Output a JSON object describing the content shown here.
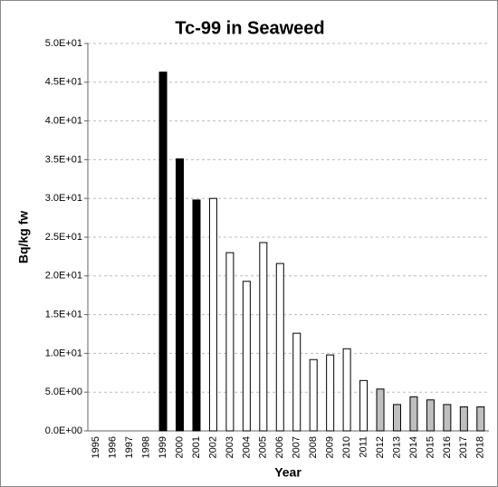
{
  "chart_data": {
    "type": "bar",
    "title": "Tc-99 in Seaweed",
    "x_label": "Year",
    "y_label": "Bq/kg fw",
    "categories": [
      "1995",
      "1996",
      "1997",
      "1998",
      "1999",
      "2000",
      "2001",
      "2002",
      "2003",
      "2004",
      "2005",
      "2006",
      "2007",
      "2008",
      "2009",
      "2010",
      "2011",
      "2012",
      "2013",
      "2014",
      "2015",
      "2016",
      "2017",
      "2018"
    ],
    "values": [
      null,
      null,
      null,
      null,
      46.3,
      35.1,
      29.8,
      30.0,
      23.0,
      19.3,
      24.3,
      21.6,
      12.6,
      9.2,
      9.8,
      10.6,
      6.5,
      5.4,
      3.4,
      4.4,
      4.0,
      3.4,
      3.1,
      3.1
    ],
    "colors": [
      "#000000",
      "#000000",
      "#000000",
      "#000000",
      "#000000",
      "#000000",
      "#000000",
      "#ffffff",
      "#ffffff",
      "#ffffff",
      "#ffffff",
      "#ffffff",
      "#ffffff",
      "#ffffff",
      "#ffffff",
      "#ffffff",
      "#ffffff",
      "#bfbfbf",
      "#bfbfbf",
      "#bfbfbf",
      "#bfbfbf",
      "#bfbfbf",
      "#bfbfbf",
      "#bfbfbf"
    ],
    "ylim": [
      0,
      50
    ],
    "yticks": [
      {
        "value": 0,
        "label": "0.0E+00"
      },
      {
        "value": 5,
        "label": "5.0E+00"
      },
      {
        "value": 10,
        "label": "1.0E+01"
      },
      {
        "value": 15,
        "label": "1.5E+01"
      },
      {
        "value": 20,
        "label": "2.0E+01"
      },
      {
        "value": 25,
        "label": "2.5E+01"
      },
      {
        "value": 30,
        "label": "3.0E+01"
      },
      {
        "value": 35,
        "label": "3.5E+01"
      },
      {
        "value": 40,
        "label": "4.0E+01"
      },
      {
        "value": 45,
        "label": "4.5E+01"
      },
      {
        "value": 50,
        "label": "5.0E+01"
      }
    ],
    "grid": true
  }
}
